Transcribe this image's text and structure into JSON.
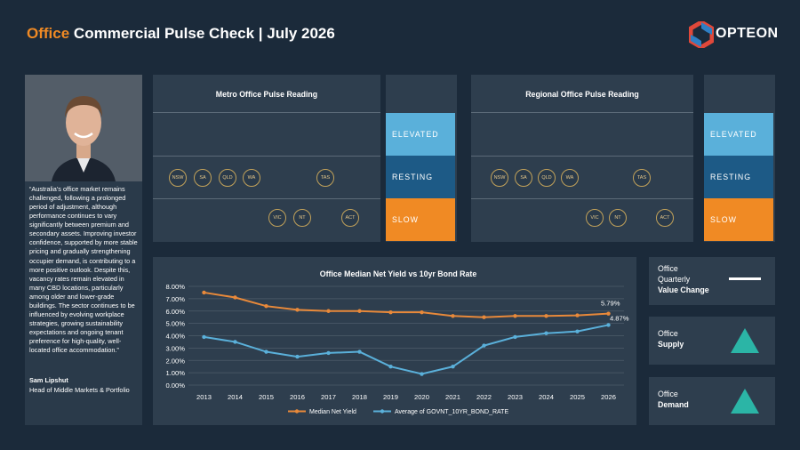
{
  "header": {
    "title_accent": "Office",
    "title_rest": "Commercial Pulse Check | July 2026",
    "logo_text": "OPTEON"
  },
  "quote": {
    "text": "“Australia’s office market remains challenged, following a prolonged period of adjustment, although performance continues to vary significantly between premium and secondary assets. Improving investor confidence, supported by more stable pricing and gradually strengthening occupier demand, is contributing to a more positive outlook. Despite this, vacancy rates remain elevated in many CBD locations, particularly among older and lower-grade buildings. The sector continues to be influenced by evolving workplace strategies, growing sustainability expectations and ongoing tenant preference for high-quality, well-located office accommodation.”",
    "name": "Sam Lipshut",
    "role": "Head of Middle Markets & Portfolio"
  },
  "metro": {
    "title": "Metro Office Pulse Reading",
    "bands": [
      "ELEVATED",
      "RESTING",
      "SLOW"
    ],
    "resting": [
      "NSW",
      "SA",
      "QLD",
      "WA",
      "TAS"
    ],
    "slow": [
      "VIC",
      "NT",
      "ACT"
    ]
  },
  "regional": {
    "title": "Regional Office Pulse Reading",
    "bands": [
      "ELEVATED",
      "RESTING",
      "SLOW"
    ],
    "resting": [
      "NSW",
      "SA",
      "QLD",
      "WA",
      "TAS"
    ],
    "slow": [
      "VIC",
      "NT",
      "ACT"
    ]
  },
  "colors": {
    "elevated": "#5ab0da",
    "resting": "#1d5a86",
    "slow": "#f08a24",
    "yield": "#e8893a",
    "bond": "#5ab0da",
    "teal": "#2bb5a6"
  },
  "kpis": [
    {
      "line1": "Office",
      "line2": "Quarterly",
      "bold": "Value Change",
      "indicator": "flat-bar"
    },
    {
      "line1": "Office",
      "line2": "",
      "bold": "Supply",
      "indicator": "up-triangle"
    },
    {
      "line1": "Office",
      "line2": "",
      "bold": "Demand",
      "indicator": "up-triangle"
    }
  ],
  "chart_data": {
    "type": "line",
    "title": "Office Median Net Yield vs 10yr Bond Rate",
    "categories": [
      "2013",
      "2014",
      "2015",
      "2016",
      "2017",
      "2018",
      "2019",
      "2020",
      "2021",
      "2022",
      "2023",
      "2024",
      "2025",
      "2026"
    ],
    "y_ticks": [
      "0.00%",
      "1.00%",
      "2.00%",
      "3.00%",
      "4.00%",
      "5.00%",
      "6.00%",
      "7.00%",
      "8.00%"
    ],
    "ylim": [
      0,
      8
    ],
    "series": [
      {
        "name": "Median Net Yield",
        "values": [
          7.5,
          7.1,
          6.4,
          6.1,
          6.0,
          6.0,
          5.9,
          5.9,
          5.6,
          5.5,
          5.6,
          5.6,
          5.65,
          5.79
        ]
      },
      {
        "name": "Average of GOVNT_10YR_BOND_RATE",
        "values": [
          3.9,
          3.5,
          2.7,
          2.3,
          2.6,
          2.7,
          1.5,
          0.9,
          1.5,
          3.2,
          3.9,
          4.2,
          4.35,
          4.87
        ]
      }
    ],
    "data_labels": [
      "5.79%",
      "4.87%"
    ],
    "legend": "bottom",
    "grid": true
  }
}
